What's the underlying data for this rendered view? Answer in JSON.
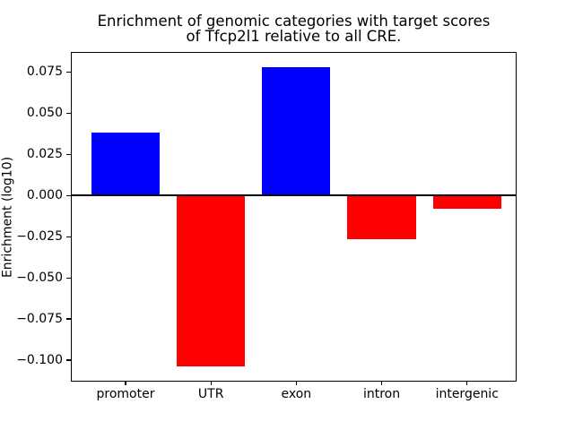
{
  "title_display": {
    "line1": "Enrichment of genomic categories with target scores",
    "line2": "of Tfcp2l1 relative to all CRE."
  },
  "chart_data": {
    "type": "bar",
    "title": "Enrichment of genomic categories with target scores\nof Tfcp2l1 relative to all CRE.",
    "categories": [
      "promoter",
      "UTR",
      "exon",
      "intron",
      "intergenic"
    ],
    "values": [
      0.038,
      -0.104,
      0.078,
      -0.0265,
      -0.008
    ],
    "xlabel": "",
    "ylabel": "Enrichment (log10)",
    "ylim": [
      -0.1125,
      0.0866
    ],
    "xlim": [
      -0.63,
      4.57
    ],
    "yticks": [
      0.075,
      0.05,
      0.025,
      0.0,
      -0.025,
      -0.05,
      -0.075,
      -0.1
    ],
    "ytick_labels": [
      "0.075",
      "0.050",
      "0.025",
      "0.000",
      "−0.025",
      "−0.050",
      "−0.075",
      "−0.100"
    ],
    "bar_width_units": 0.8,
    "positive_color": "#0000ff",
    "negative_color": "#ff0000",
    "zero_line": true,
    "zero_line_color": "#000000",
    "grid": false,
    "legend": false,
    "background_color": "#ffffff",
    "text_color": "#000000"
  }
}
